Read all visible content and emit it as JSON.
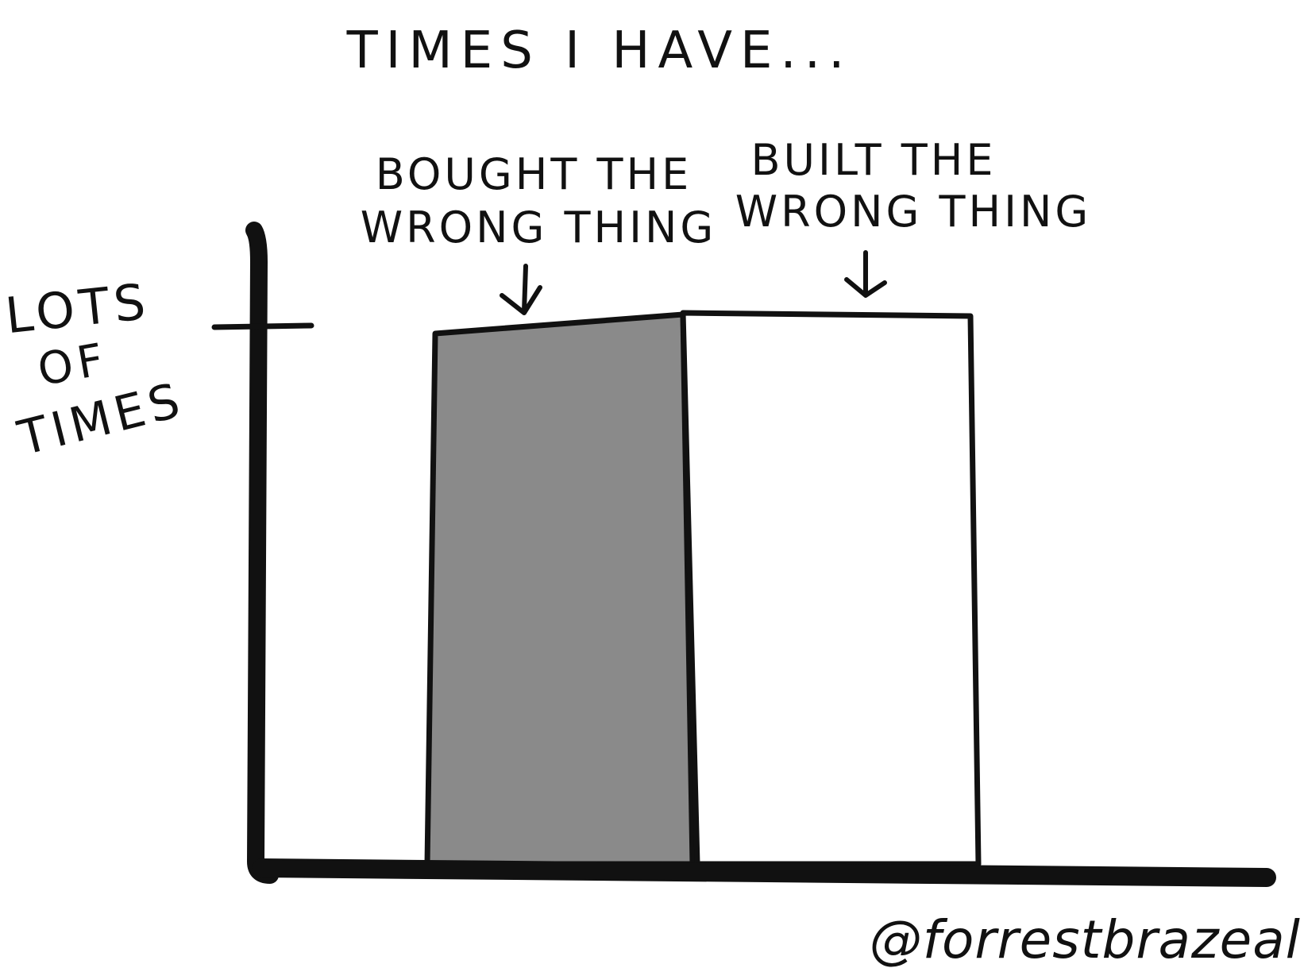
{
  "chart_data": {
    "type": "bar",
    "title": "TIMES I HAVE...",
    "ylabel_lines": [
      "LOTS",
      "OF",
      "TIMES"
    ],
    "y_tick_label": "LOTS OF TIMES",
    "categories": [
      "BOUGHT THE WRONG THING",
      "BUILT THE WRONG THING"
    ],
    "category_label_lines": [
      [
        "BOUGHT THE",
        "WRONG THING"
      ],
      [
        "BUILT THE",
        "WRONG THING"
      ]
    ],
    "values": [
      1,
      1
    ],
    "ylim": [
      0,
      1
    ],
    "bar_fills": [
      "#8a8a8a",
      "#ffffff"
    ],
    "grid": false,
    "signature": "@forrestbrazeal"
  },
  "colors": {
    "ink": "#111111",
    "background": "#ffffff",
    "bar_gray": "#8a8a8a"
  }
}
